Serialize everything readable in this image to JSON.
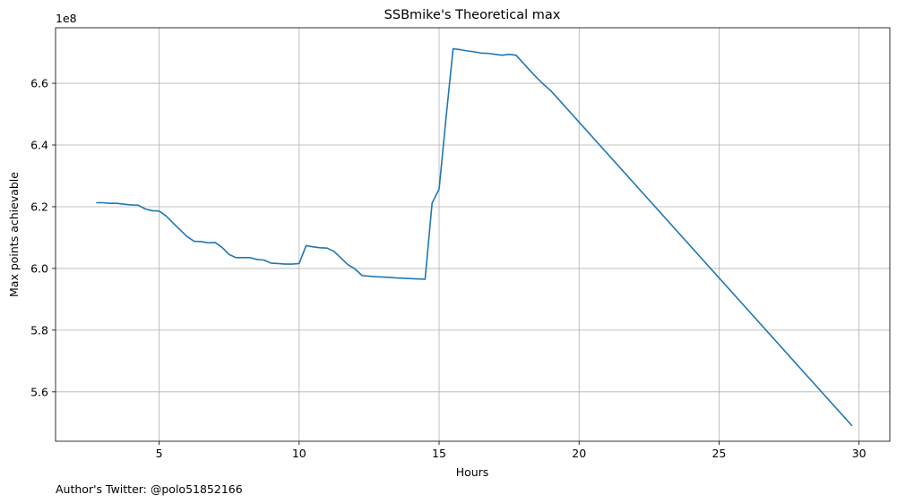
{
  "chart_data": {
    "type": "line",
    "title": "SSBmike's Theoretical max",
    "xlabel": "Hours",
    "ylabel": "Max points achievable",
    "y_offset_label": "1e8",
    "footer": "Author's Twitter: @polo51852166",
    "xlim": [
      1.3,
      31.1
    ],
    "ylim": [
      5.44,
      6.78
    ],
    "x_ticks": [
      5,
      10,
      15,
      20,
      25,
      30
    ],
    "x_tick_labels": [
      "5",
      "10",
      "15",
      "20",
      "25",
      "30"
    ],
    "y_ticks": [
      5.6,
      5.8,
      6.0,
      6.2,
      6.4,
      6.6
    ],
    "y_tick_labels": [
      "5.6",
      "5.8",
      "6.0",
      "6.2",
      "6.4",
      "6.6"
    ],
    "grid": true,
    "line_color": "#1f77b4",
    "series": [
      {
        "x": [
          2.75,
          3.0,
          3.25,
          3.5,
          3.75,
          4.0,
          4.25,
          4.5,
          4.75,
          5.0,
          5.25,
          5.5,
          5.75,
          6.0,
          6.25,
          6.5,
          6.75,
          7.0,
          7.25,
          7.5,
          7.75,
          8.0,
          8.25,
          8.5,
          8.75,
          9.0,
          9.25,
          9.5,
          9.75,
          10.0,
          10.25,
          10.5,
          10.75,
          11.0,
          11.25,
          11.5,
          11.75,
          12.0,
          12.25,
          12.5,
          12.75,
          13.0,
          13.25,
          13.5,
          13.75,
          14.0,
          14.25,
          14.5,
          14.75,
          15.0,
          15.25,
          15.5,
          15.75,
          16.0,
          16.25,
          16.5,
          16.75,
          17.0,
          17.25,
          17.5,
          17.75,
          18.0,
          18.25,
          18.5,
          18.75,
          19.0,
          29.75
        ],
        "y": [
          6.213,
          6.213,
          6.211,
          6.211,
          6.208,
          6.206,
          6.205,
          6.193,
          6.187,
          6.186,
          6.17,
          6.147,
          6.125,
          6.103,
          6.088,
          6.087,
          6.083,
          6.084,
          6.068,
          6.045,
          6.035,
          6.035,
          6.035,
          6.029,
          6.027,
          6.017,
          6.016,
          6.014,
          6.014,
          6.016,
          6.074,
          6.07,
          6.067,
          6.066,
          6.055,
          6.033,
          6.012,
          5.998,
          5.977,
          5.975,
          5.973,
          5.972,
          5.971,
          5.969,
          5.968,
          5.967,
          5.966,
          5.965,
          6.212,
          6.257,
          6.49,
          6.712,
          6.709,
          6.705,
          6.702,
          6.698,
          6.697,
          6.694,
          6.691,
          6.694,
          6.691,
          6.666,
          6.641,
          6.617,
          6.595,
          6.575,
          5.49
        ]
      }
    ]
  }
}
